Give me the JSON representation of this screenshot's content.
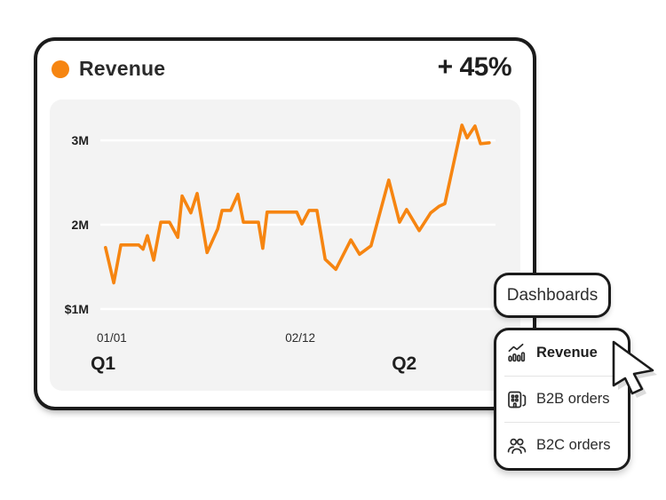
{
  "colors": {
    "accent": "#F68511",
    "panel": "#f3f3f3",
    "gridline": "#ffffff",
    "divider": "#e4e4e4"
  },
  "header": {
    "title": "Revenue",
    "change": "+ 45%"
  },
  "chart_data": {
    "type": "line",
    "title": "Revenue",
    "x_unit": "percent of plot width (01/01 → Q2 timeline)",
    "y_unit": "millions USD",
    "ylim": [
      0.8,
      3.4
    ],
    "xlim": [
      0,
      100
    ],
    "grid": "horizontal",
    "legend": "none",
    "y_gridlines": [
      {
        "label": "3M",
        "value": 3
      },
      {
        "label": "2M",
        "value": 2
      },
      {
        "label": "$1M",
        "value": 1
      }
    ],
    "x_ticks": [
      {
        "label": "01/01",
        "x": 2.9
      },
      {
        "label": "02/12",
        "x": 50.6
      }
    ],
    "quarter_labels": [
      {
        "label": "Q1",
        "x": 0.7
      },
      {
        "label": "Q2",
        "x": 76.9
      }
    ],
    "series": [
      {
        "name": "Revenue",
        "color": "#F68511",
        "points": [
          {
            "x": 1.3,
            "v": 1.73
          },
          {
            "x": 3.4,
            "v": 1.31
          },
          {
            "x": 5.2,
            "v": 1.76
          },
          {
            "x": 7.4,
            "v": 1.76
          },
          {
            "x": 9.7,
            "v": 1.76
          },
          {
            "x": 10.8,
            "v": 1.71
          },
          {
            "x": 11.9,
            "v": 1.87
          },
          {
            "x": 13.5,
            "v": 1.58
          },
          {
            "x": 15.3,
            "v": 2.03
          },
          {
            "x": 17.5,
            "v": 2.03
          },
          {
            "x": 19.6,
            "v": 1.85
          },
          {
            "x": 20.7,
            "v": 2.34
          },
          {
            "x": 22.9,
            "v": 2.14
          },
          {
            "x": 24.5,
            "v": 2.37
          },
          {
            "x": 27.0,
            "v": 1.67
          },
          {
            "x": 29.7,
            "v": 1.95
          },
          {
            "x": 30.8,
            "v": 2.17
          },
          {
            "x": 33.0,
            "v": 2.17
          },
          {
            "x": 34.8,
            "v": 2.36
          },
          {
            "x": 36.2,
            "v": 2.03
          },
          {
            "x": 40.0,
            "v": 2.03
          },
          {
            "x": 41.1,
            "v": 1.72
          },
          {
            "x": 42.2,
            "v": 2.15
          },
          {
            "x": 49.7,
            "v": 2.15
          },
          {
            "x": 51.0,
            "v": 2.01
          },
          {
            "x": 52.8,
            "v": 2.17
          },
          {
            "x": 54.8,
            "v": 2.17
          },
          {
            "x": 56.9,
            "v": 1.59
          },
          {
            "x": 59.6,
            "v": 1.47
          },
          {
            "x": 63.4,
            "v": 1.82
          },
          {
            "x": 65.6,
            "v": 1.65
          },
          {
            "x": 68.5,
            "v": 1.75
          },
          {
            "x": 73.0,
            "v": 2.53
          },
          {
            "x": 75.7,
            "v": 2.03
          },
          {
            "x": 77.5,
            "v": 2.18
          },
          {
            "x": 80.7,
            "v": 1.93
          },
          {
            "x": 83.6,
            "v": 2.14
          },
          {
            "x": 85.8,
            "v": 2.22
          },
          {
            "x": 87.2,
            "v": 2.25
          },
          {
            "x": 91.5,
            "v": 3.18
          },
          {
            "x": 92.8,
            "v": 3.03
          },
          {
            "x": 94.8,
            "v": 3.17
          },
          {
            "x": 96.2,
            "v": 2.96
          },
          {
            "x": 98.4,
            "v": 2.97
          }
        ]
      }
    ]
  },
  "dropdown": {
    "trigger_label": "Dashboards",
    "items": [
      {
        "label": "Revenue",
        "icon": "line-chart-icon",
        "selected": true
      },
      {
        "label": "B2B orders",
        "icon": "building-icon",
        "selected": false
      },
      {
        "label": "B2C orders",
        "icon": "people-icon",
        "selected": false
      }
    ]
  }
}
